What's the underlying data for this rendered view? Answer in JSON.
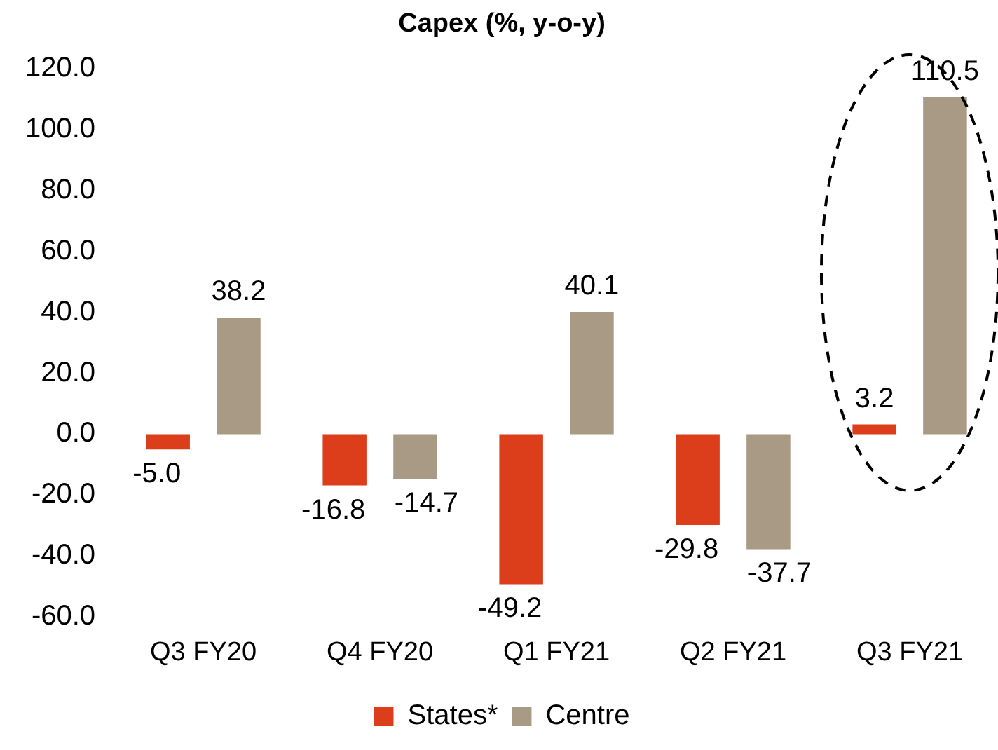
{
  "chart_data": {
    "type": "bar",
    "title": "Capex (%, y-o-y)",
    "categories": [
      "Q3 FY20",
      "Q4 FY20",
      "Q1 FY21",
      "Q2 FY21",
      "Q3 FY21"
    ],
    "series": [
      {
        "name": "States*",
        "color": "#dc3d1b",
        "values": [
          -5.0,
          -16.8,
          -49.2,
          -29.8,
          3.2
        ],
        "value_labels": [
          "-5.0",
          "-16.8",
          "-49.2",
          "-29.8",
          "3.2"
        ]
      },
      {
        "name": "Centre",
        "color": "#a89a84",
        "values": [
          38.2,
          -14.7,
          40.1,
          -37.7,
          110.5
        ],
        "value_labels": [
          "38.2",
          "-14.7",
          "40.1",
          "-37.7",
          "110.5"
        ]
      }
    ],
    "ylim": [
      -60,
      120
    ],
    "yticks": [
      {
        "value": -60,
        "label": "-60.0"
      },
      {
        "value": -40,
        "label": "-40.0"
      },
      {
        "value": -20,
        "label": "-20.0"
      },
      {
        "value": 0,
        "label": "0.0"
      },
      {
        "value": 20,
        "label": "20.0"
      },
      {
        "value": 40,
        "label": "40.0"
      },
      {
        "value": 60,
        "label": "60.0"
      },
      {
        "value": 80,
        "label": "80.0"
      },
      {
        "value": 100,
        "label": "100.0"
      },
      {
        "value": 120,
        "label": "120.0"
      }
    ],
    "grid": false,
    "legend": "bottom"
  }
}
